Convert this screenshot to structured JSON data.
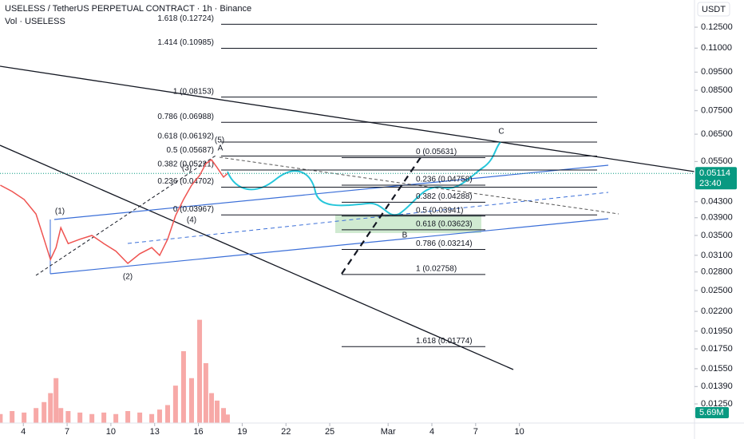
{
  "chart_data": {
    "type": "line",
    "title": "USELESS / TetherUS PERPETUAL CONTRACT · 1h · Binance",
    "subtitle": "Vol · USELESS",
    "y_axis_label": "USDT",
    "log_scale": true,
    "grid": false,
    "x": [
      2.42,
      3.23,
      4.05,
      4.87,
      5.42,
      5.86,
      6.24,
      6.57,
      7.07,
      7.88,
      8.7,
      9.52,
      10.34,
      11.16,
      11.98,
      12.8,
      13.34,
      13.89,
      14.43,
      14.98,
      15.53,
      16.08,
      16.51,
      16.9,
      17.28,
      17.72,
      17.99
    ],
    "series": [
      {
        "color": "#ef5350",
        "values": [
          0.0476,
          0.0458,
          0.0436,
          0.0399,
          0.0342,
          0.0302,
          0.0325,
          0.0367,
          0.0333,
          0.0342,
          0.035,
          0.0333,
          0.0318,
          0.0295,
          0.0313,
          0.0325,
          0.031,
          0.0342,
          0.0395,
          0.0436,
          0.0476,
          0.0505,
          0.0543,
          0.0556,
          0.053,
          0.05,
          0.0511
        ]
      },
      {
        "color": "#f7a9a7",
        "axis": "y2",
        "values": [
          6,
          8,
          7,
          10,
          14,
          20,
          30,
          10,
          8,
          7,
          6,
          7,
          6,
          8,
          7,
          6,
          9,
          12,
          25,
          48,
          30,
          69,
          40,
          20,
          15,
          10,
          5.69
        ]
      }
    ],
    "xlim": [
      2.4,
      50
    ],
    "xticks": [
      4,
      7,
      10,
      13,
      16,
      19,
      22,
      25,
      {
        "value": 29,
        "label": "Mar"
      },
      {
        "value": 32,
        "label": "4"
      },
      {
        "value": 35,
        "label": "7"
      },
      {
        "value": 38,
        "label": "10"
      }
    ],
    "ylim": [
      0.01112,
      0.1476
    ],
    "yticks": [
      {
        "value": 0.125,
        "label": "0.12500"
      },
      {
        "value": 0.11,
        "label": "0.11000"
      },
      {
        "value": 0.095,
        "label": "0.09500"
      },
      {
        "value": 0.085,
        "label": "0.08500"
      },
      {
        "value": 0.075,
        "label": "0.07500"
      },
      {
        "value": 0.065,
        "label": "0.06500"
      },
      {
        "value": 0.055,
        "label": "0.05500"
      },
      {
        "value": 0.043,
        "label": "0.04300"
      },
      {
        "value": 0.039,
        "label": "0.03900"
      },
      {
        "value": 0.035,
        "label": "0.03500"
      },
      {
        "value": 0.031,
        "label": "0.03100"
      },
      {
        "value": 0.028,
        "label": "0.02800"
      },
      {
        "value": 0.025,
        "label": "0.02500"
      },
      {
        "value": 0.022,
        "label": "0.02200"
      },
      {
        "value": 0.0195,
        "label": "0.01950"
      },
      {
        "value": 0.0175,
        "label": "0.01750"
      },
      {
        "value": 0.0155,
        "label": "0.01550"
      },
      {
        "value": 0.0139,
        "label": "0.01390"
      },
      {
        "value": 0.0125,
        "label": "0.01250"
      }
    ],
    "y2lim": [
      0,
      80
    ],
    "last_price": {
      "value": 0.05114,
      "label": "0.05114"
    },
    "countdown": "23:40",
    "last_volume": {
      "value": 5.69,
      "label": "5.69M"
    },
    "fib_left": [
      {
        "value": 0.12724,
        "label": "1.618 (0.12724)"
      },
      {
        "value": 0.10985,
        "label": "1.414 (0.10985)"
      },
      {
        "value": 0.08153,
        "label": "1 (0.08153)"
      },
      {
        "value": 0.06988,
        "label": "0.786 (0.06988)"
      },
      {
        "value": 0.06192,
        "label": "0.618 (0.06192)"
      },
      {
        "value": 0.05687,
        "label": "0.5 (0.05687)"
      },
      {
        "value": 0.05221,
        "label": "0.382 (0.05221)"
      },
      {
        "value": 0.04702,
        "label": "0.236 (0.04702)"
      },
      {
        "value": 0.03967,
        "label": "0 (0.03967)"
      }
    ],
    "fib_right": [
      {
        "value": 0.05631,
        "label": "0 (0.05631)"
      },
      {
        "value": 0.04758,
        "label": "0.236 (0.04758)"
      },
      {
        "value": 0.04288,
        "label": "0.382 (0.04288)"
      },
      {
        "value": 0.03941,
        "label": "0.5 (0.03941)"
      },
      {
        "value": 0.03623,
        "label": "0.618 (0.03623)"
      },
      {
        "value": 0.03214,
        "label": "0.786 (0.03214)"
      },
      {
        "value": 0.02758,
        "label": "1 (0.02758)"
      },
      {
        "value": 0.01774,
        "label": "1.618 (0.01774)"
      }
    ],
    "annotations": [
      "(1)",
      "(2)",
      "(3)",
      "(4)",
      "(5)",
      "A",
      "B",
      "C"
    ]
  }
}
